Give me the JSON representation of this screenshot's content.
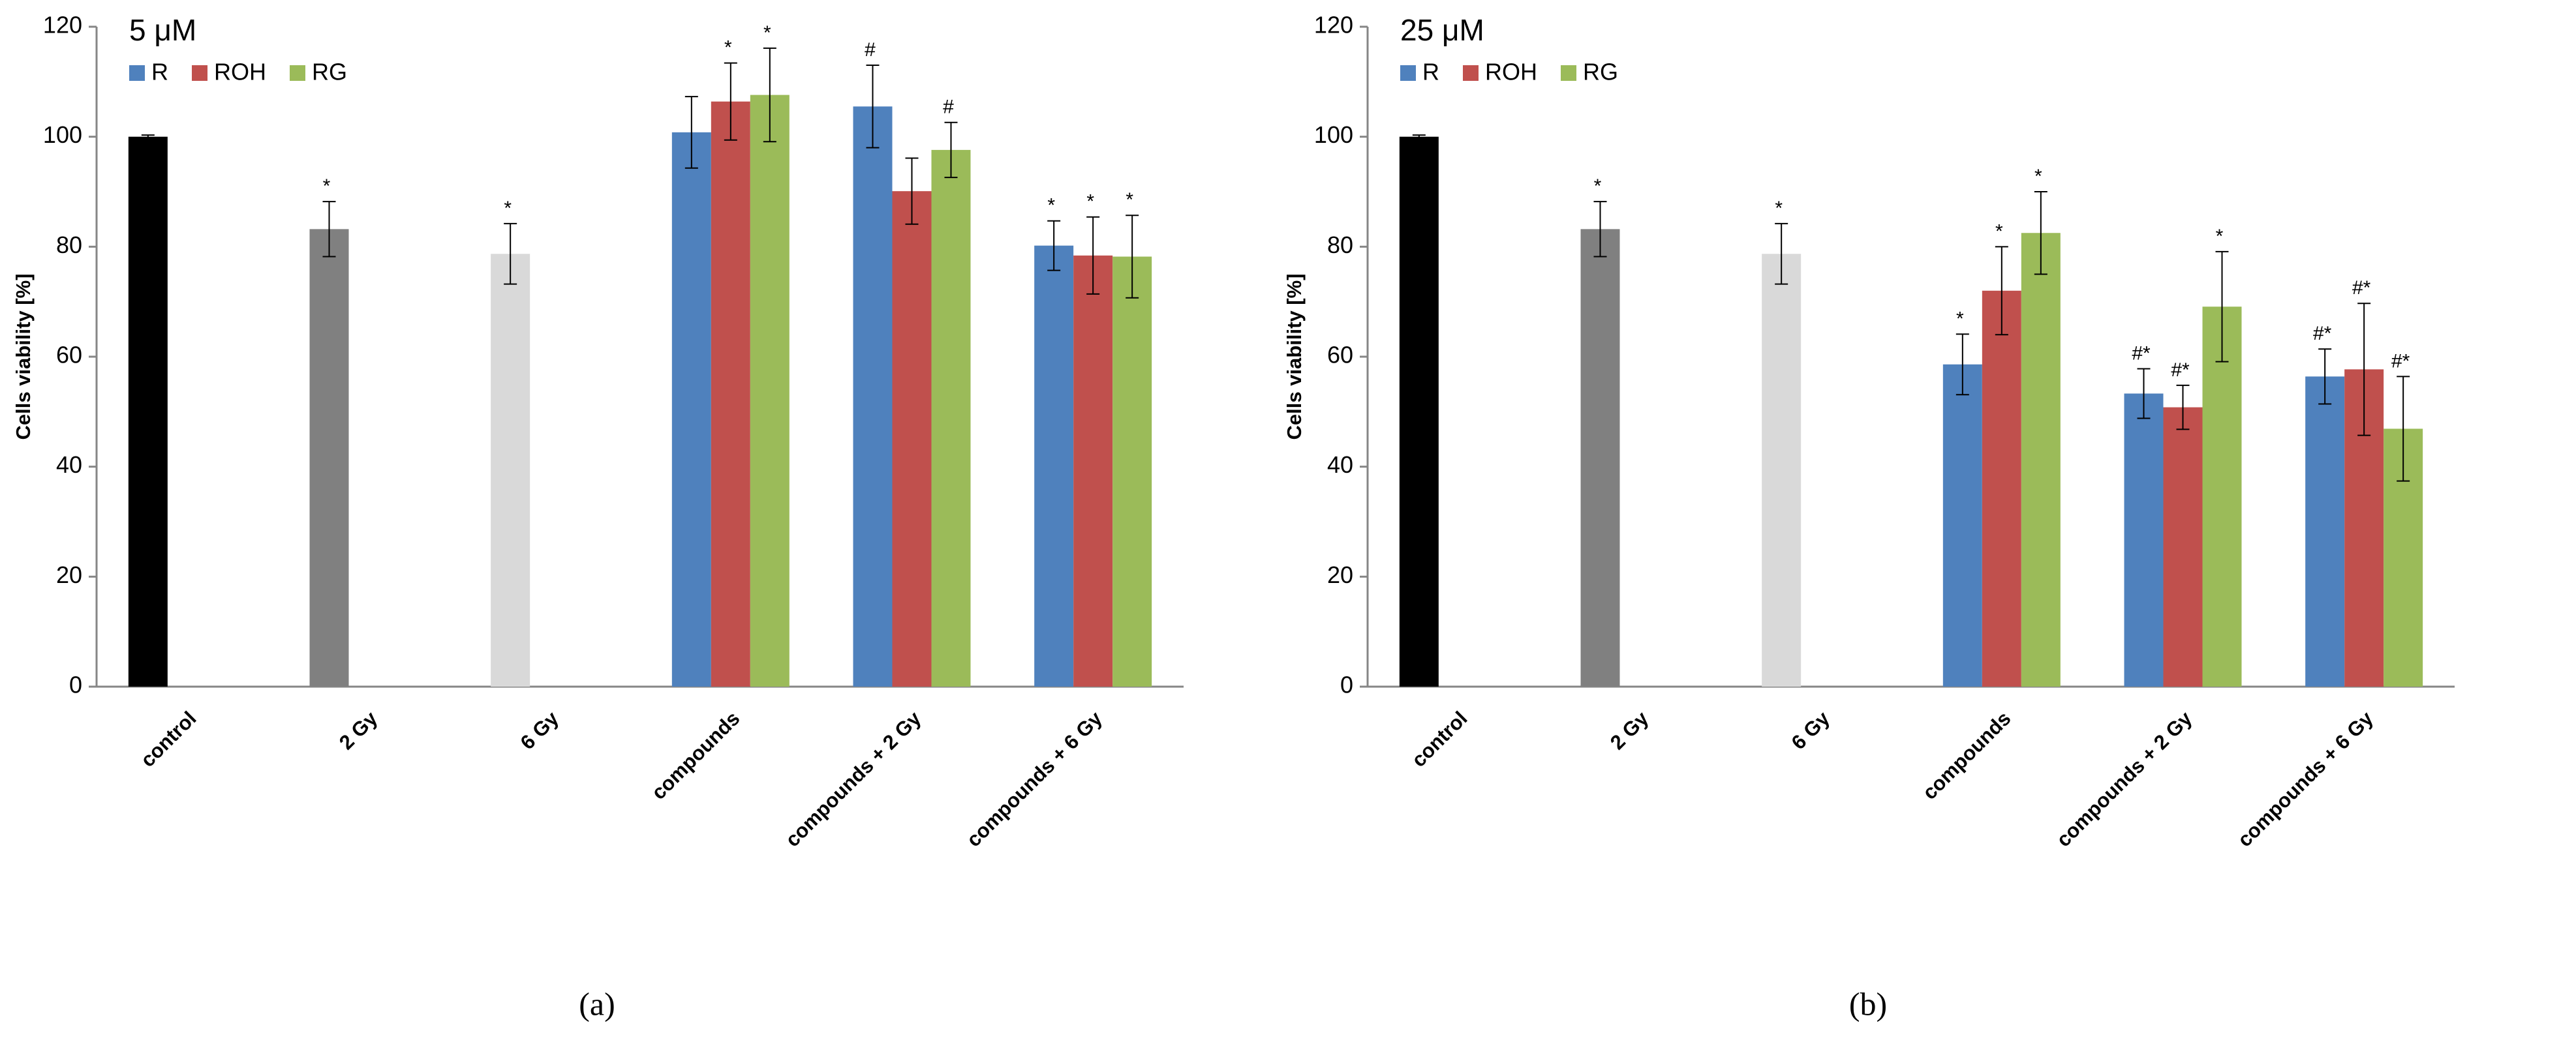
{
  "chart_data": [
    {
      "type": "bar",
      "title": "5 μM",
      "caption": "(a)",
      "ylabel": "Cells viability [%]",
      "categories": [
        "control",
        "2 Gy",
        "6 Gy",
        "compounds",
        "compounds + 2 Gy",
        "compounds + 6 Gy"
      ],
      "single_values": [
        100,
        83.2,
        78.7,
        null,
        null,
        null
      ],
      "single_errors": [
        0.3,
        5,
        5.5,
        null,
        null,
        null
      ],
      "single_colors": [
        "#000000",
        "#808080",
        "#d9d9d9",
        null,
        null,
        null
      ],
      "single_markers": [
        null,
        "*",
        "*",
        null,
        null,
        null
      ],
      "series": [
        {
          "name": "R",
          "color": "#4f81bd",
          "values": [
            null,
            null,
            null,
            100.8,
            105.5,
            80.2
          ],
          "errors": [
            null,
            null,
            null,
            6.5,
            7.5,
            4.5
          ],
          "markers": [
            null,
            null,
            null,
            null,
            "#",
            "*"
          ]
        },
        {
          "name": "ROH",
          "color": "#c0504d",
          "values": [
            null,
            null,
            null,
            106.4,
            90.1,
            78.4
          ],
          "errors": [
            null,
            null,
            null,
            7,
            6,
            7
          ],
          "markers": [
            null,
            null,
            null,
            "*",
            null,
            "*"
          ]
        },
        {
          "name": "RG",
          "color": "#9bbb59",
          "values": [
            null,
            null,
            null,
            107.6,
            97.6,
            78.2
          ],
          "errors": [
            null,
            null,
            null,
            8.5,
            5,
            7.5
          ],
          "markers": [
            null,
            null,
            null,
            "*",
            "#",
            "*"
          ]
        }
      ],
      "ylim": [
        0,
        120
      ],
      "yticks": [
        0,
        20,
        40,
        60,
        80,
        100,
        120
      ],
      "grid": false,
      "legend": "top-left"
    },
    {
      "type": "bar",
      "title": "25 μM",
      "caption": "(b)",
      "ylabel": "Cells viability [%]",
      "categories": [
        "control",
        "2 Gy",
        "6 Gy",
        "compounds",
        "compounds + 2 Gy",
        "compounds + 6 Gy"
      ],
      "single_values": [
        100,
        83.2,
        78.7,
        null,
        null,
        null
      ],
      "single_errors": [
        0.3,
        5,
        5.5,
        null,
        null,
        null
      ],
      "single_colors": [
        "#000000",
        "#808080",
        "#d9d9d9",
        null,
        null,
        null
      ],
      "single_markers": [
        null,
        "*",
        "*",
        null,
        null,
        null
      ],
      "series": [
        {
          "name": "R",
          "color": "#4f81bd",
          "values": [
            null,
            null,
            null,
            58.6,
            53.3,
            56.4
          ],
          "errors": [
            null,
            null,
            null,
            5.5,
            4.5,
            5
          ],
          "markers": [
            null,
            null,
            null,
            "*",
            "#*",
            "#*"
          ]
        },
        {
          "name": "ROH",
          "color": "#c0504d",
          "values": [
            null,
            null,
            null,
            72,
            50.8,
            57.7
          ],
          "errors": [
            null,
            null,
            null,
            8,
            4,
            12
          ],
          "markers": [
            null,
            null,
            null,
            "*",
            "#*",
            "#*"
          ]
        },
        {
          "name": "RG",
          "color": "#9bbb59",
          "values": [
            null,
            null,
            null,
            82.5,
            69.1,
            46.9
          ],
          "errors": [
            null,
            null,
            null,
            7.5,
            10,
            9.5
          ],
          "markers": [
            null,
            null,
            null,
            "*",
            "*",
            "#*"
          ]
        }
      ],
      "ylim": [
        0,
        120
      ],
      "yticks": [
        0,
        20,
        40,
        60,
        80,
        100,
        120
      ],
      "grid": false,
      "legend": "top-left"
    }
  ]
}
